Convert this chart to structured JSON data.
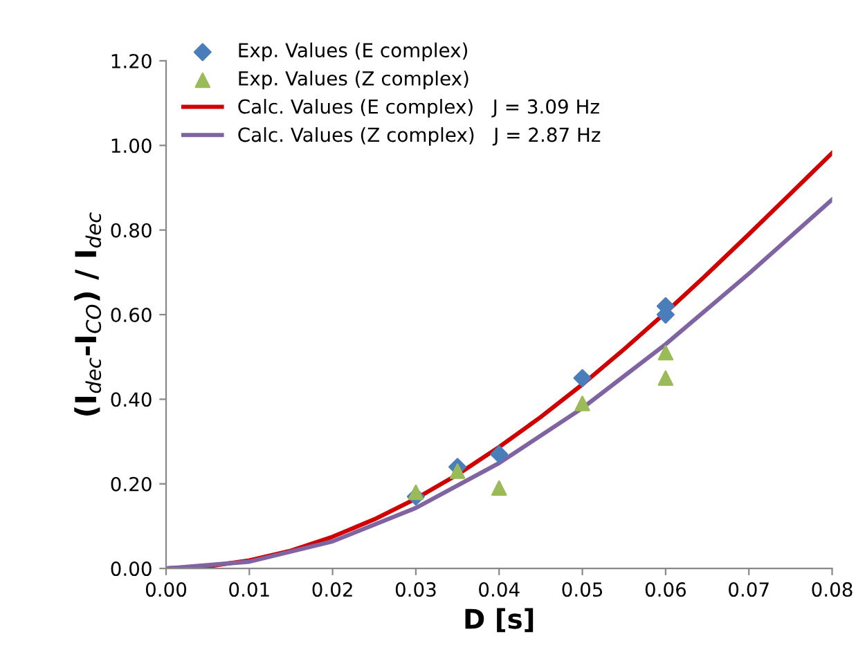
{
  "chart_data": {
    "type": "scatter",
    "xlabel": "D [s]",
    "ylabel": "(I$_{dec}$-I$_{CO}$) / I$_{dec}$",
    "xlim": [
      0,
      0.08
    ],
    "ylim": [
      0,
      1.2
    ],
    "xticks": [
      {
        "value": 0,
        "label": "0.00"
      },
      {
        "value": 0.01,
        "label": "0.01"
      },
      {
        "value": 0.02,
        "label": "0.02"
      },
      {
        "value": 0.03,
        "label": "0.03"
      },
      {
        "value": 0.04,
        "label": "0.04"
      },
      {
        "value": 0.05,
        "label": "0.05"
      },
      {
        "value": 0.06,
        "label": "0.06"
      },
      {
        "value": 0.07,
        "label": "0.07"
      },
      {
        "value": 0.08,
        "label": "0.08"
      }
    ],
    "yticks": [
      {
        "value": 0,
        "label": "0.00"
      },
      {
        "value": 0.2,
        "label": "0.20"
      },
      {
        "value": 0.4,
        "label": "0.40"
      },
      {
        "value": 0.6,
        "label": "0.60"
      },
      {
        "value": 0.8,
        "label": "0.80"
      },
      {
        "value": 1.0,
        "label": "1.00"
      },
      {
        "value": 1.2,
        "label": "1.20"
      }
    ],
    "grid": false,
    "legend": "top left",
    "series": [
      {
        "name": "Exp. Values (E complex)",
        "marker": "diamond",
        "color": "#4a7ebb",
        "x": [
          0.03,
          0.035,
          0.04,
          0.05,
          0.06,
          0.06
        ],
        "values": [
          0.17,
          0.24,
          0.27,
          0.45,
          0.62,
          0.6
        ]
      },
      {
        "name": "Exp. Values (Z complex)",
        "marker": "triangle",
        "color": "#9bbb59",
        "x": [
          0.03,
          0.035,
          0.04,
          0.05,
          0.06,
          0.06
        ],
        "values": [
          0.18,
          0.23,
          0.19,
          0.39,
          0.51,
          0.45
        ]
      },
      {
        "name": "Calc. Values (E complex)   J = 3.09 Hz",
        "type": "line",
        "marker": "none",
        "color": "#d00000",
        "x": [
          0,
          0.005,
          0.01,
          0.015,
          0.02,
          0.025,
          0.03,
          0.035,
          0.04,
          0.045,
          0.05,
          0.055,
          0.06,
          0.065,
          0.07,
          0.075,
          0.08
        ],
        "values": [
          0,
          0.005,
          0.019,
          0.042,
          0.075,
          0.116,
          0.165,
          0.222,
          0.287,
          0.358,
          0.435,
          0.518,
          0.605,
          0.696,
          0.79,
          0.886,
          0.982
        ]
      },
      {
        "name": "Calc. Values (Z complex)   J = 2.87 Hz",
        "type": "line",
        "marker": "none",
        "color": "#8064a2",
        "x": [
          0,
          0.01,
          0.02,
          0.03,
          0.04,
          0.05,
          0.06,
          0.07,
          0.08
        ],
        "values": [
          0,
          0.016,
          0.064,
          0.143,
          0.249,
          0.379,
          0.53,
          0.697,
          0.872
        ]
      }
    ]
  }
}
